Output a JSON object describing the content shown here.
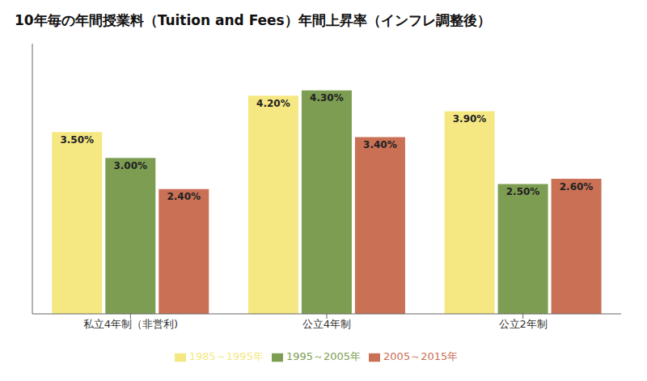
{
  "chart_data": {
    "type": "bar",
    "title": "10年毎の年間授業料（Tuition and Fees）年間上昇率（インフレ調整後）",
    "categories": [
      "私立4年制（非営利)",
      "公立4年制",
      "公立2年制"
    ],
    "series": [
      {
        "name": "1985～1995年",
        "values": [
          3.5,
          4.2,
          3.9
        ],
        "value_labels": [
          "3.50%",
          "4.20%",
          "3.90%"
        ],
        "color": "#F5E882"
      },
      {
        "name": "1995～2005年",
        "values": [
          3.0,
          4.3,
          2.5
        ],
        "value_labels": [
          "3.00%",
          "4.30%",
          "2.50%"
        ],
        "color": "#7D9E52"
      },
      {
        "name": "2005～2015年",
        "values": [
          2.4,
          3.4,
          2.6
        ],
        "value_labels": [
          "2.40%",
          "3.40%",
          "2.60%"
        ],
        "color": "#C97055"
      }
    ],
    "ylim": [
      0,
      5.2
    ],
    "data_labels": true,
    "tick_labels": "x",
    "grid": false,
    "legend": "bottom"
  }
}
